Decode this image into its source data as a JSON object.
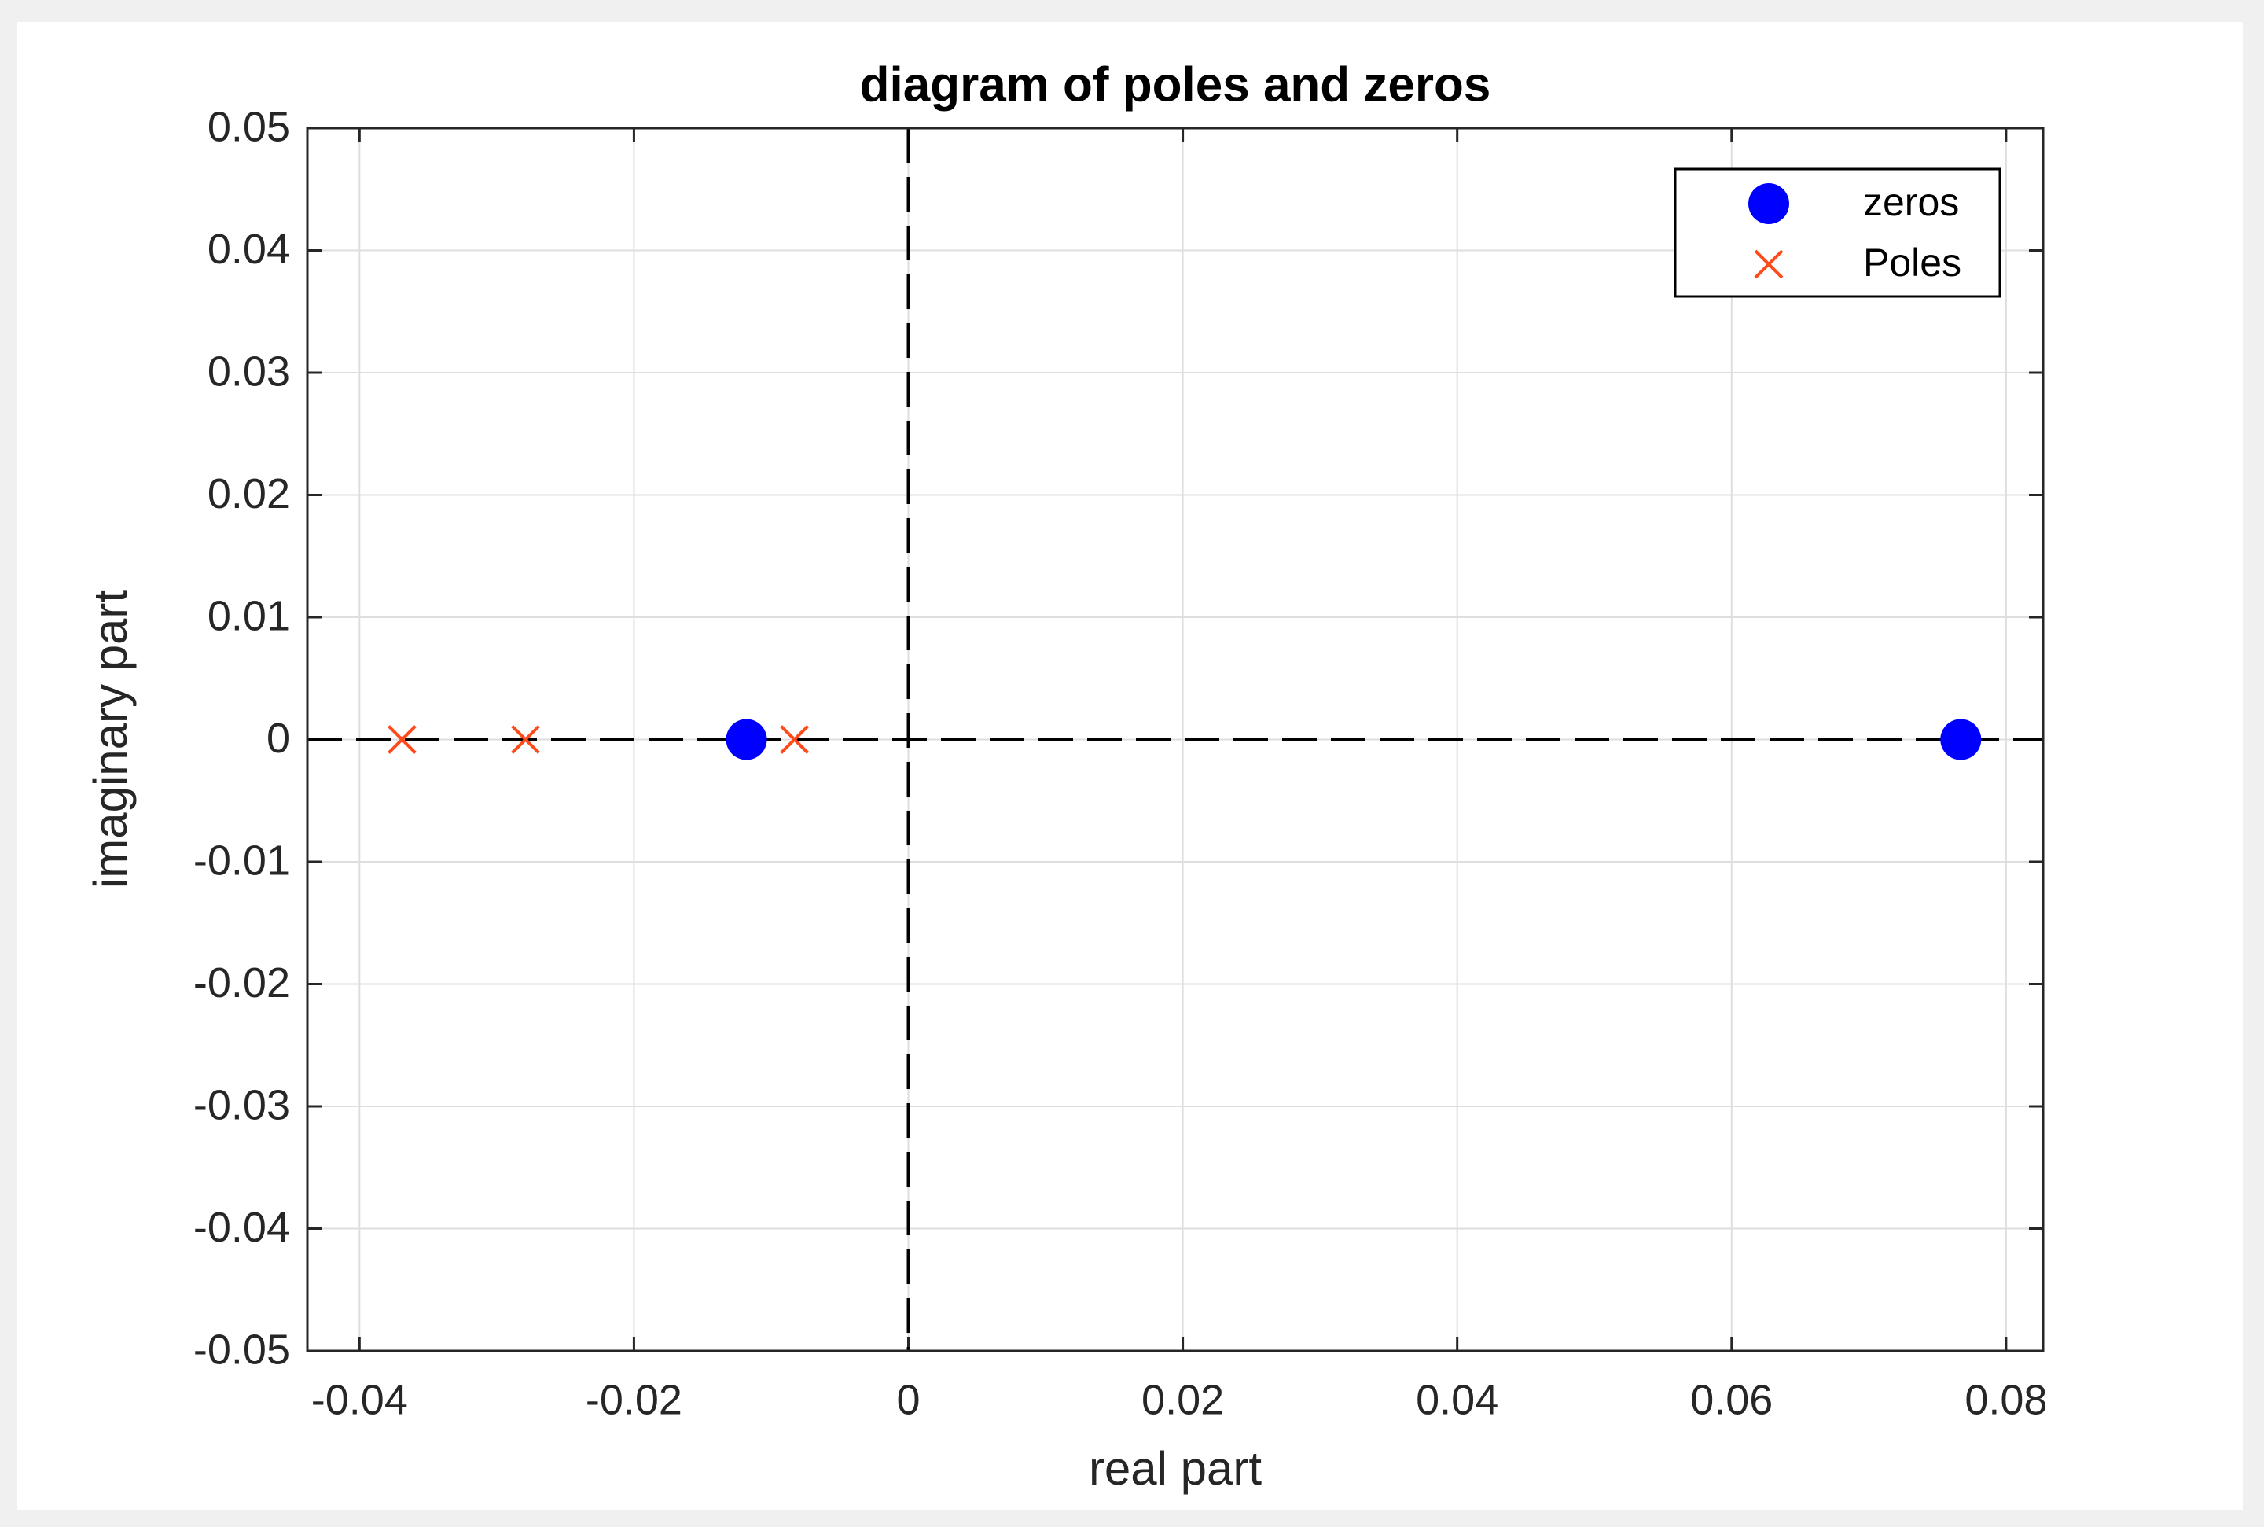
{
  "chart_data": {
    "type": "scatter",
    "title": "diagram of poles and zeros",
    "x_label": "real part",
    "y_label": "imaginary part",
    "xlim": [
      -0.0438,
      0.0827
    ],
    "ylim": [
      -0.05,
      0.05
    ],
    "xticks": [
      -0.04,
      -0.02,
      0,
      0.02,
      0.04,
      0.06,
      0.08
    ],
    "yticks": [
      -0.05,
      -0.04,
      -0.03,
      -0.02,
      -0.01,
      0,
      0.01,
      0.02,
      0.03,
      0.04,
      0.05
    ],
    "grid": true,
    "legend_position": "upper right",
    "reference_lines": [
      {
        "axis": "x",
        "value": 0
      },
      {
        "axis": "y",
        "value": 0
      }
    ],
    "series": [
      {
        "name": "zeros",
        "color": "#0000ff",
        "marker": "circle",
        "x": [
          -0.0118,
          0.0767
        ],
        "values": [
          0,
          0
        ]
      },
      {
        "name": "Poles",
        "color": "#ff4a1a",
        "marker": "cross",
        "x": [
          -0.0369,
          -0.0279,
          -0.0083
        ],
        "values": [
          0,
          0,
          0
        ]
      }
    ]
  }
}
